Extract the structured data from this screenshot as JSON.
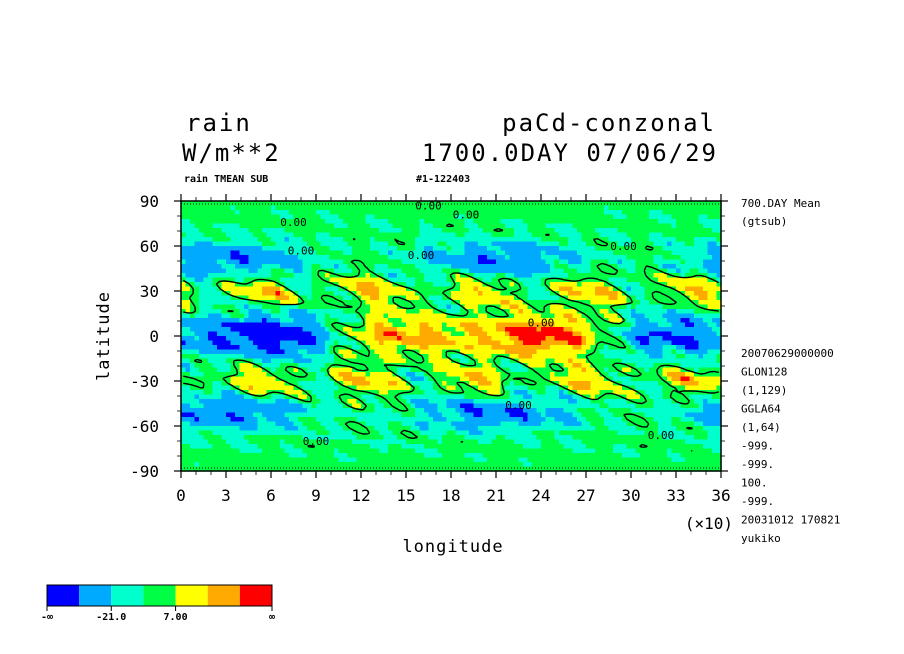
{
  "header": {
    "var_name": "rain",
    "units": "W/m**2",
    "experiment": "paCd-conzonal",
    "time": "1700.0DAY 07/06/29",
    "subtitle": "rain TMEAN SUB",
    "run_id": "#1-122403"
  },
  "side_info": {
    "lines_top": [
      "700.DAY Mean",
      "(gtsub)"
    ],
    "lines_bottom": [
      "20070629000000",
      "GLON128",
      "(1,129)",
      "GGLA64",
      "(1,64)",
      "-999.",
      "-999.",
      "100.",
      "-999.",
      "20031012 170821",
      "yukiko"
    ]
  },
  "chart_data": {
    "type": "heatmap",
    "xlabel": "longitude",
    "ylabel": "latitude",
    "x_multiplier_label": "(×10)",
    "xlim": [
      0,
      36
    ],
    "ylim": [
      -90,
      90
    ],
    "xticks": [
      "0",
      "3",
      "6",
      "9",
      "12",
      "15",
      "18",
      "21",
      "24",
      "27",
      "30",
      "33",
      "36"
    ],
    "yticks": [
      "90",
      "60",
      "30",
      "0",
      "-30",
      "-60",
      "-90"
    ],
    "contour_labels": [
      {
        "text": "0.00",
        "lon": 16.5,
        "lat": 87
      },
      {
        "text": "0.00",
        "lon": 19,
        "lat": 81
      },
      {
        "text": "0.00",
        "lon": 7.5,
        "lat": 76
      },
      {
        "text": "0.00",
        "lon": 8,
        "lat": 57
      },
      {
        "text": "0.00",
        "lon": 16,
        "lat": 54
      },
      {
        "text": "0.00",
        "lon": 29.5,
        "lat": 60
      },
      {
        "text": "0.00",
        "lon": 24,
        "lat": 9
      },
      {
        "text": "0.00",
        "lon": 22.5,
        "lat": -46
      },
      {
        "text": "0.00",
        "lon": 9,
        "lat": -70
      },
      {
        "text": "0.00",
        "lon": 32,
        "lat": -66
      }
    ],
    "colorbar": {
      "colors": [
        "#0000ff",
        "#00aaff",
        "#00ffcc",
        "#00ff44",
        "#ffff00",
        "#ffaa00",
        "#ff0000"
      ],
      "labels": [
        "-∞",
        "-21.0",
        "7.00",
        "∞"
      ]
    }
  }
}
